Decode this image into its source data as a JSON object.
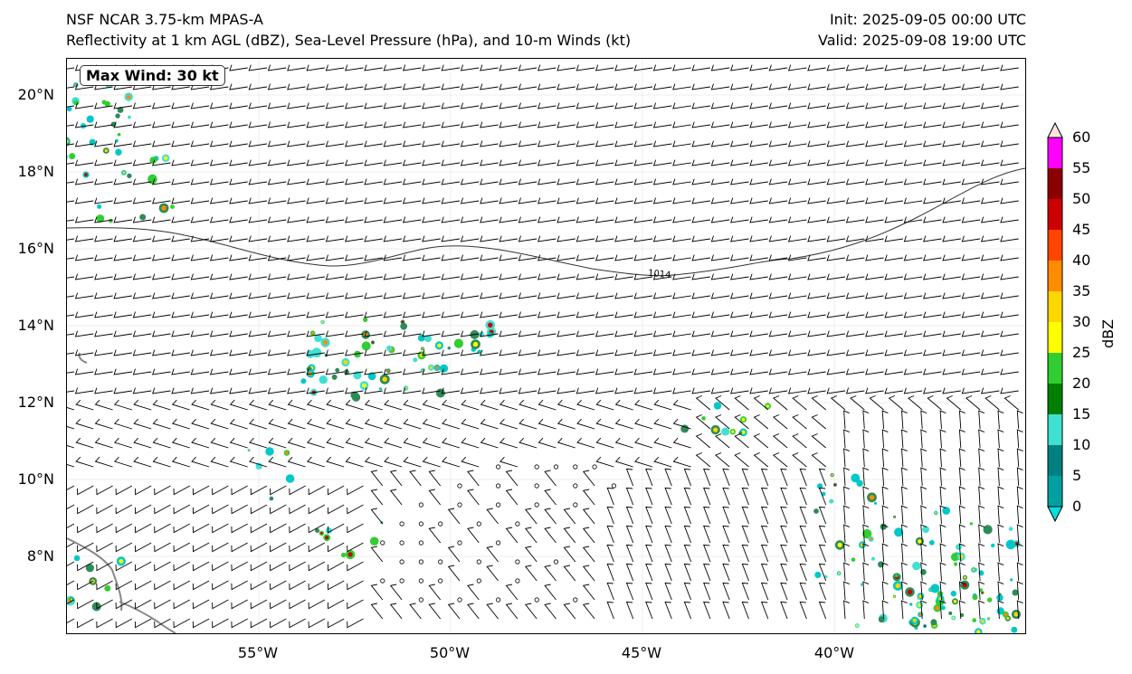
{
  "header": {
    "model": "NSF NCAR 3.75-km MPAS-A",
    "fields": "Reflectivity at 1 km AGL (dBZ), Sea-Level Pressure (hPa), and 10-m Winds (kt)",
    "init": "Init: 2025-09-05 00:00 UTC",
    "valid": "Valid: 2025-09-08 19:00 UTC"
  },
  "annotation": {
    "max_wind": "Max Wind: 30 kt"
  },
  "axes": {
    "lat_labels": [
      "20°N",
      "18°N",
      "16°N",
      "14°N",
      "12°N",
      "10°N",
      "8°N"
    ],
    "lon_labels": [
      "55°W",
      "50°W",
      "45°W",
      "40°W"
    ]
  },
  "isobar": {
    "label": "1014"
  },
  "colorbar": {
    "title": "dBZ",
    "ticks": [
      "0",
      "5",
      "10",
      "15",
      "20",
      "25",
      "30",
      "35",
      "40",
      "45",
      "50",
      "55",
      "60"
    ],
    "colors": [
      "#00e0e0",
      "#00a0a0",
      "#008080",
      "#40e0d0",
      "#008000",
      "#32cd32",
      "#ffff00",
      "#ffd700",
      "#ff8c00",
      "#ff4500",
      "#cc0000",
      "#8b0000",
      "#ff00ff",
      "#ffe4e1"
    ]
  }
}
